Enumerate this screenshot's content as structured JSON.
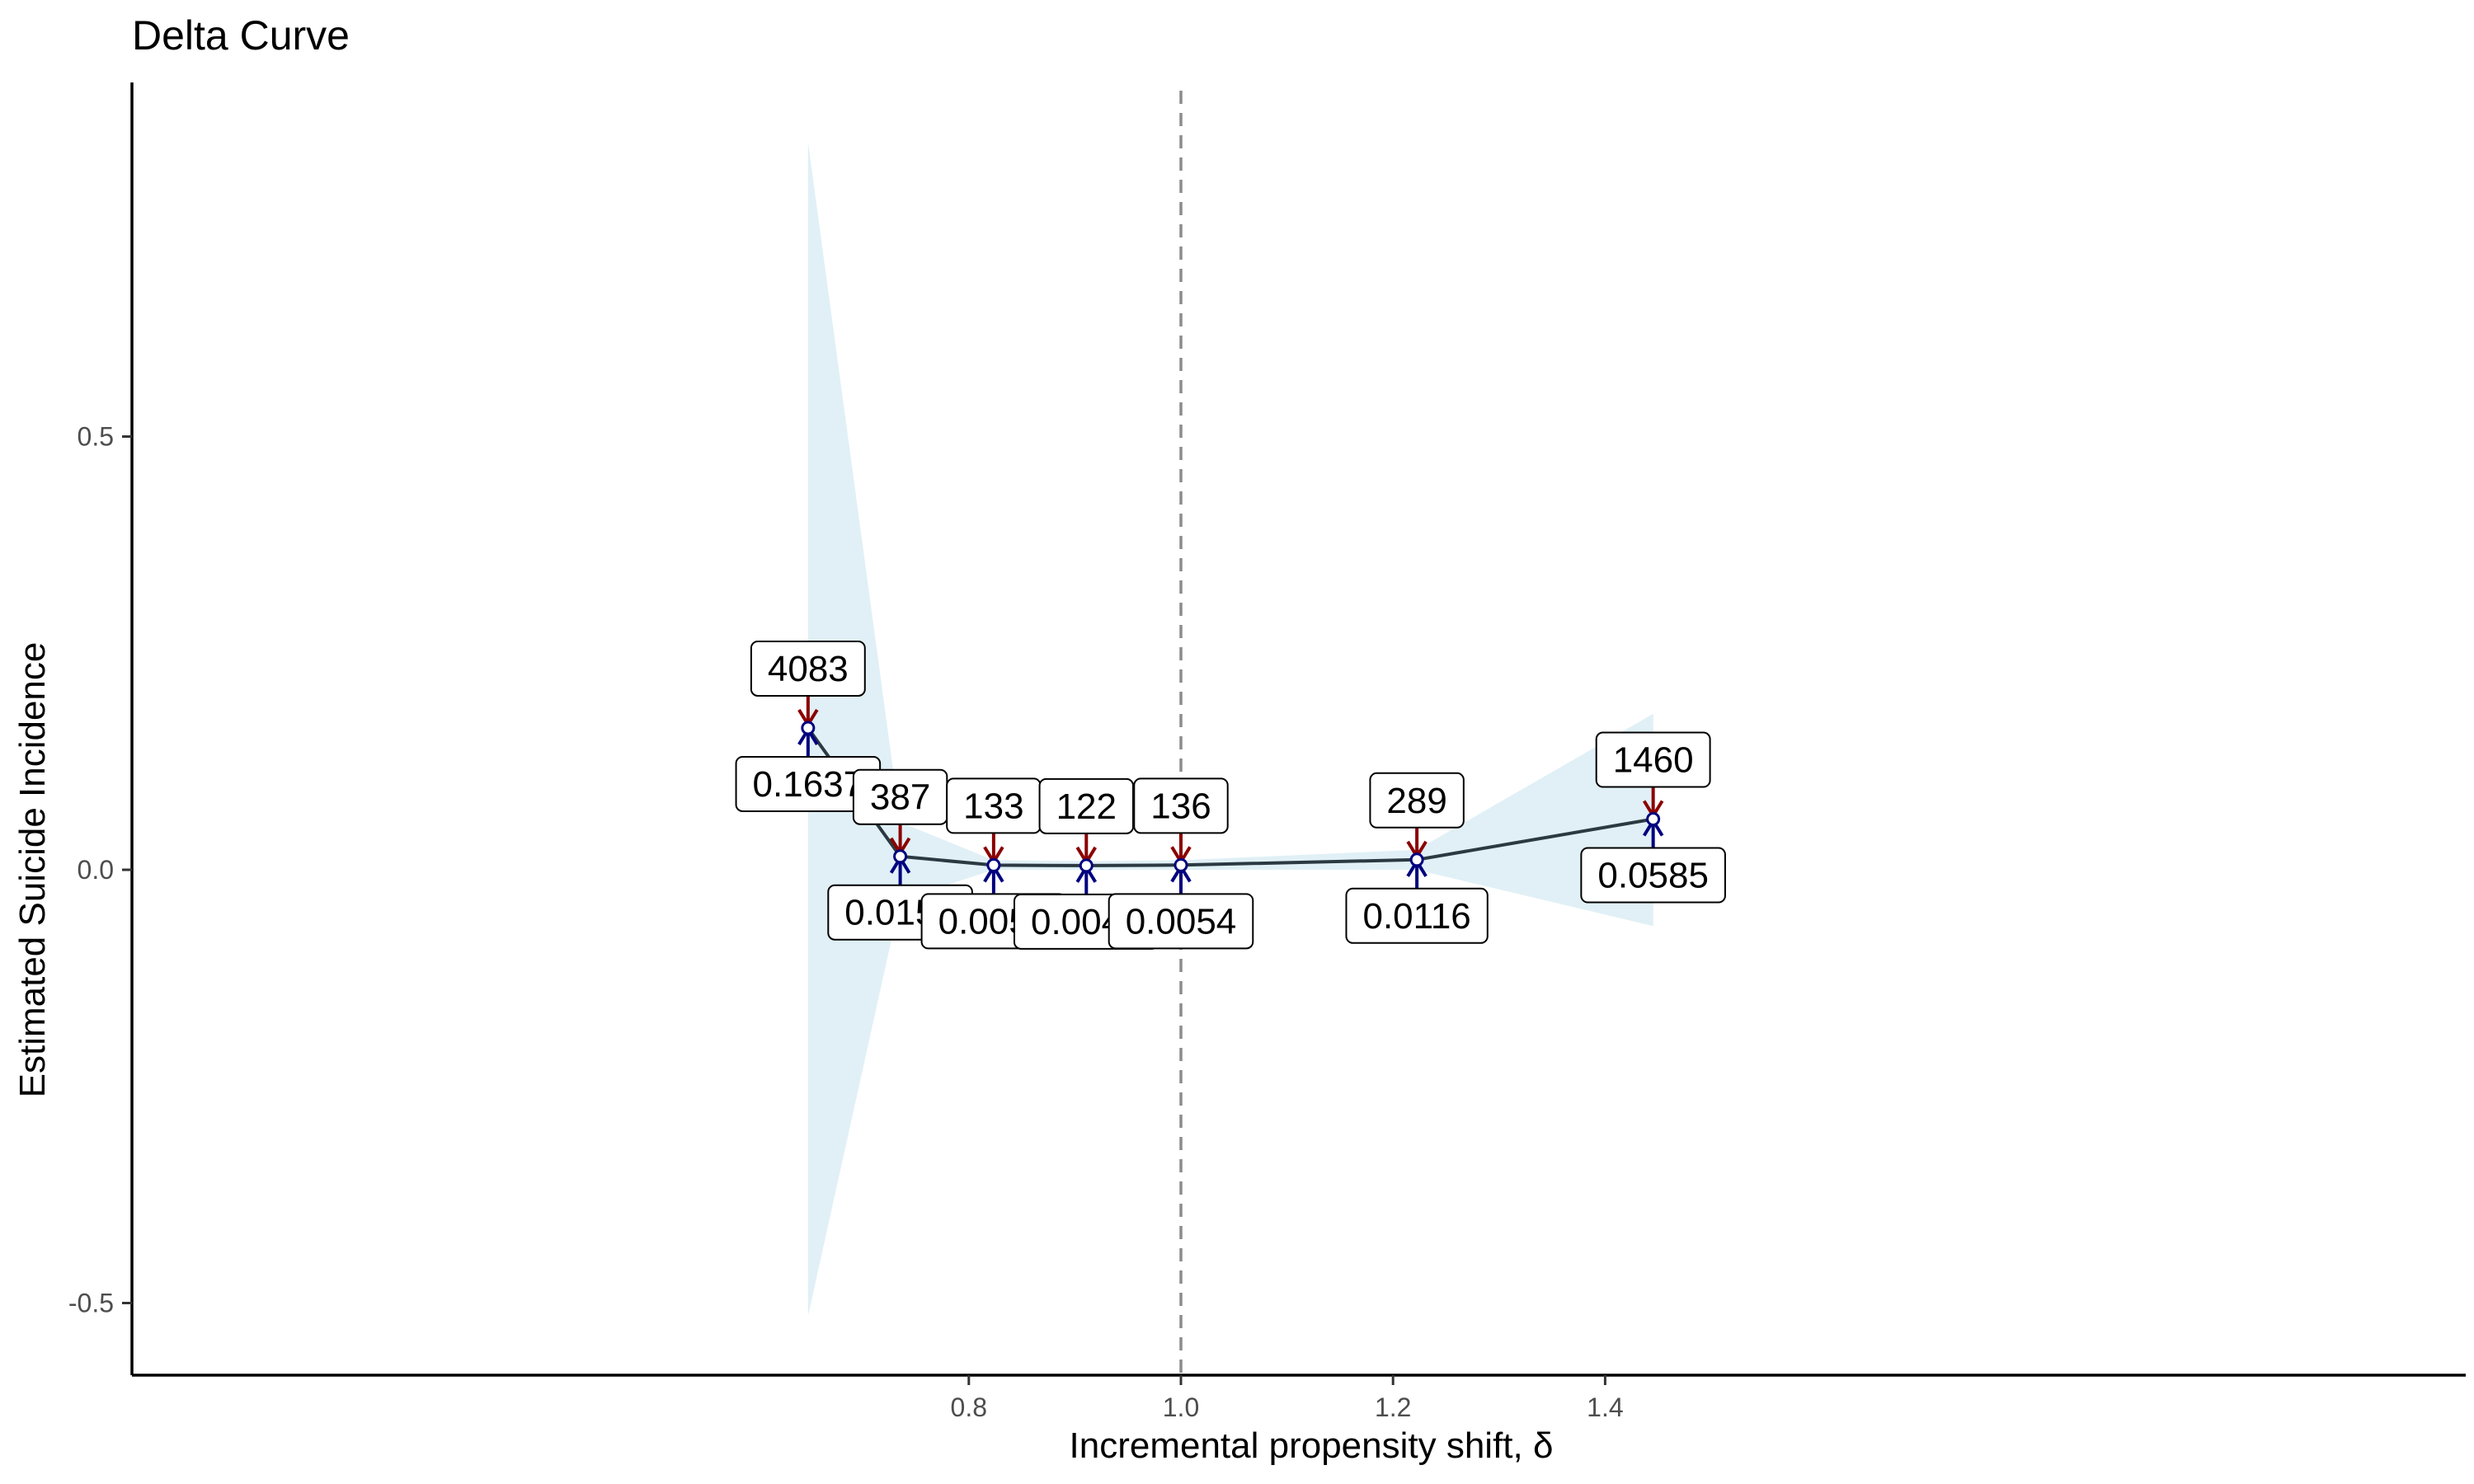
{
  "chart_data": {
    "type": "line",
    "title": "Delta Curve",
    "xlabel": "Incremental propensity shift, δ",
    "ylabel": "Estimated Suicide Incidence",
    "xlim": [
      0.6,
      1.42
    ],
    "ylim": [
      -0.58,
      0.91
    ],
    "x_ticks": [
      0.8,
      1.0,
      1.2,
      1.4
    ],
    "x_tick_labels": [
      "0.8",
      "1.0",
      "1.2",
      "1.4"
    ],
    "y_ticks": [
      -0.5,
      0.0,
      0.5
    ],
    "y_tick_labels": [
      "-0.5",
      "0.0",
      "0.5"
    ],
    "reference_line_x": 1.0,
    "grid": false,
    "points": [
      {
        "x": 0.6484,
        "y": 0.1637,
        "value_label": "0.1637",
        "count_label": "4083",
        "ci_low": -0.515,
        "ci_high": 0.84
      },
      {
        "x": 0.7353,
        "y": 0.0155,
        "value_label": "0.0155",
        "count_label": "387",
        "ci_low": -0.035,
        "ci_high": 0.055
      },
      {
        "x": 0.8234,
        "y": 0.0053,
        "value_label": "0.0053",
        "count_label": "133",
        "ci_low": 0.0,
        "ci_high": 0.011
      },
      {
        "x": 0.9108,
        "y": 0.0049,
        "value_label": "0.0049",
        "count_label": "122",
        "ci_low": 0.0,
        "ci_high": 0.01
      },
      {
        "x": 1.0,
        "y": 0.0054,
        "value_label": "0.0054",
        "count_label": "136",
        "ci_low": 0.0,
        "ci_high": 0.011
      },
      {
        "x": 1.2225,
        "y": 0.0116,
        "value_label": "0.0116",
        "count_label": "289",
        "ci_low": 0.0,
        "ci_high": 0.023
      },
      {
        "x": 1.4453,
        "y": 0.0585,
        "value_label": "0.0585",
        "count_label": "1460",
        "ci_low": -0.065,
        "ci_high": 0.18
      }
    ],
    "colors": {
      "ribbon": "#e0f0f6",
      "line": "#2b3a42",
      "up_arrow": "#00007f",
      "down_arrow": "#8b0000",
      "reference": "#8c8c8c"
    }
  }
}
